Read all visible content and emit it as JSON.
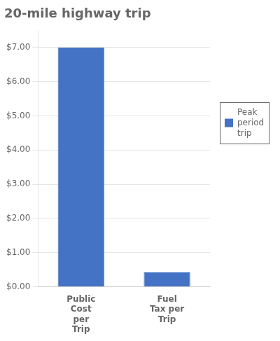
{
  "chart_data": {
    "type": "bar",
    "title": "20-mile highway trip",
    "categories": [
      "Public\nCost\nper\nTrip",
      "Fuel\nTax per\nTrip"
    ],
    "series": [
      {
        "name": "Peak\nperiod\ntrip",
        "color": "#4472C4",
        "values": [
          7.0,
          0.42
        ]
      }
    ],
    "ylim": [
      0,
      7.5
    ],
    "yticks": [
      {
        "value": 0.0,
        "label": "$0.00"
      },
      {
        "value": 1.0,
        "label": "$1.00"
      },
      {
        "value": 2.0,
        "label": "$2.00"
      },
      {
        "value": 3.0,
        "label": "$3.00"
      },
      {
        "value": 4.0,
        "label": "$4.00"
      },
      {
        "value": 5.0,
        "label": "$5.00"
      },
      {
        "value": 6.0,
        "label": "$6.00"
      },
      {
        "value": 7.0,
        "label": "$7.00"
      }
    ],
    "grid": true,
    "legend": "right"
  }
}
